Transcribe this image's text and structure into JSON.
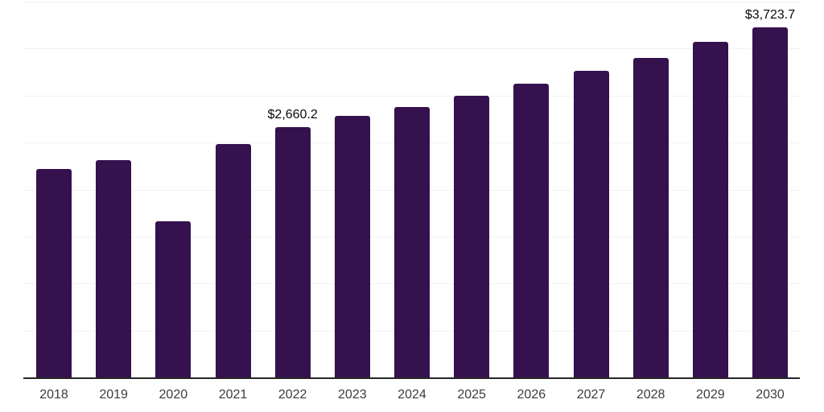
{
  "chart_data": {
    "type": "bar",
    "title": "",
    "xlabel": "",
    "ylabel": "",
    "categories": [
      "2018",
      "2019",
      "2020",
      "2021",
      "2022",
      "2023",
      "2024",
      "2025",
      "2026",
      "2027",
      "2028",
      "2029",
      "2030"
    ],
    "values": [
      2220,
      2310,
      1660,
      2480,
      2660.2,
      2780,
      2880,
      3000,
      3130,
      3260,
      3400,
      3570,
      3723.7
    ],
    "point_labels": [
      "",
      "",
      "",
      "",
      "$2,660.2",
      "",
      "",
      "",
      "",
      "",
      "",
      "",
      "$3,723.7"
    ],
    "ylim": [
      0,
      4000
    ],
    "grid_step": 500,
    "grid": true,
    "legend_position": "none",
    "colors": {
      "bar": "#35114D",
      "gridline": "#F2F2F2",
      "axis_line": "#262626",
      "tick_label": "#3C3C3C",
      "data_label": "#0A0A0A",
      "background": "#FFFFFF"
    }
  }
}
